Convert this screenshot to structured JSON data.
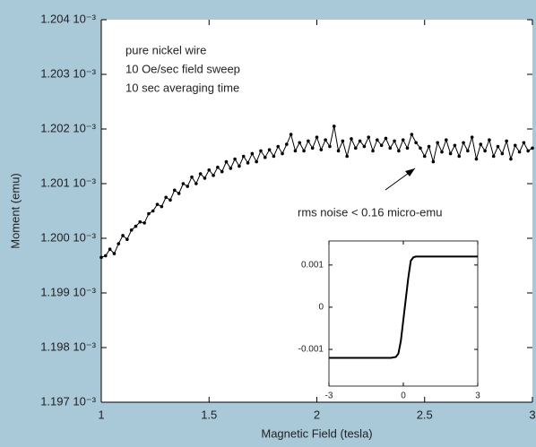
{
  "chart_data": [
    {
      "type": "line",
      "xlabel": "Magnetic Field (tesla)",
      "ylabel": "Moment (emu)",
      "annotations": [
        "pure nickel wire",
        "10 Oe/sec field sweep",
        "10 sec averaging time"
      ],
      "noise_note": "rms noise < 0.16 micro-emu",
      "highlight": {
        "xlim": [
          2.46,
          3.0
        ],
        "ylim": [
          0.0012011,
          0.00120195
        ],
        "color": "#1ba6de"
      },
      "color": "#000000",
      "xlim": [
        1,
        3
      ],
      "ylim": [
        0.001197,
        0.001204
      ],
      "xticks": [
        1,
        1.5,
        2,
        2.5,
        3
      ],
      "yticks": [
        {
          "value": 0.001197,
          "label": "1.197 10⁻³"
        },
        {
          "value": 0.001198,
          "label": "1.198 10⁻³"
        },
        {
          "value": 0.001199,
          "label": "1.199 10⁻³"
        },
        {
          "value": 0.0012,
          "label": "1.200 10⁻³"
        },
        {
          "value": 0.001201,
          "label": "1.201 10⁻³"
        },
        {
          "value": 0.001202,
          "label": "1.202 10⁻³"
        },
        {
          "value": 0.001203,
          "label": "1.203 10⁻³"
        },
        {
          "value": 0.001204,
          "label": "1.204 10⁻³"
        }
      ],
      "x": [
        1.0,
        1.02,
        1.04,
        1.06,
        1.08,
        1.1,
        1.12,
        1.14,
        1.16,
        1.18,
        1.2,
        1.22,
        1.24,
        1.26,
        1.28,
        1.3,
        1.32,
        1.34,
        1.36,
        1.38,
        1.4,
        1.42,
        1.44,
        1.46,
        1.48,
        1.5,
        1.52,
        1.54,
        1.56,
        1.58,
        1.6,
        1.62,
        1.64,
        1.66,
        1.68,
        1.7,
        1.72,
        1.74,
        1.76,
        1.78,
        1.8,
        1.82,
        1.84,
        1.86,
        1.88,
        1.9,
        1.92,
        1.94,
        1.96,
        1.98,
        2.0,
        2.02,
        2.04,
        2.06,
        2.08,
        2.1,
        2.12,
        2.14,
        2.16,
        2.18,
        2.2,
        2.22,
        2.24,
        2.26,
        2.28,
        2.3,
        2.32,
        2.34,
        2.36,
        2.38,
        2.4,
        2.42,
        2.44,
        2.46,
        2.48,
        2.5,
        2.52,
        2.54,
        2.56,
        2.58,
        2.6,
        2.62,
        2.64,
        2.66,
        2.68,
        2.7,
        2.72,
        2.74,
        2.76,
        2.78,
        2.8,
        2.82,
        2.84,
        2.86,
        2.88,
        2.9,
        2.92,
        2.94,
        2.96,
        2.98,
        3.0
      ],
      "values": [
        0.00119965,
        0.00119968,
        0.0011998,
        0.00119972,
        0.0011999,
        0.00120005,
        0.00119998,
        0.00120015,
        0.00120022,
        0.0012003,
        0.00120028,
        0.00120045,
        0.0012005,
        0.00120062,
        0.00120058,
        0.00120075,
        0.0012007,
        0.00120088,
        0.00120082,
        0.001201,
        0.00120095,
        0.00120112,
        0.001201,
        0.00120118,
        0.0012011,
        0.00120125,
        0.00120115,
        0.0012013,
        0.00120122,
        0.0012014,
        0.00120128,
        0.00120145,
        0.00120132,
        0.0012015,
        0.00120138,
        0.00120155,
        0.0012014,
        0.0012016,
        0.00120148,
        0.00120162,
        0.0012015,
        0.00120168,
        0.00120155,
        0.00120172,
        0.0012019,
        0.0012016,
        0.00120175,
        0.0012016,
        0.00120178,
        0.00120165,
        0.00120185,
        0.00120162,
        0.0012018,
        0.00120168,
        0.00120205,
        0.0012016,
        0.00120178,
        0.0012015,
        0.00120182,
        0.00120165,
        0.00120178,
        0.00120168,
        0.00120185,
        0.0012016,
        0.0012018,
        0.0012017,
        0.00120183,
        0.00120165,
        0.00120178,
        0.0012016,
        0.0012018,
        0.00120165,
        0.0012019,
        0.00120175,
        0.00120165,
        0.0012015,
        0.00120168,
        0.0012014,
        0.00120175,
        0.00120158,
        0.0012018,
        0.00120155,
        0.0012017,
        0.0012015,
        0.00120175,
        0.0012016,
        0.00120185,
        0.00120145,
        0.00120172,
        0.0012016,
        0.0012018,
        0.0012015,
        0.00120168,
        0.00120155,
        0.00120178,
        0.00120145,
        0.0012017,
        0.00120158,
        0.00120175,
        0.0012016,
        0.00120165
      ]
    },
    {
      "type": "line",
      "color": "#000000",
      "xlim": [
        -3,
        3
      ],
      "ylim": [
        -0.00187,
        0.00157
      ],
      "xticks": [
        -3,
        0,
        3
      ],
      "yticks": [
        -0.001,
        0,
        0.001
      ],
      "x": [
        -3,
        -1,
        -0.5,
        -0.3,
        -0.2,
        -0.1,
        0,
        0.1,
        0.2,
        0.3,
        0.4,
        0.5,
        1,
        3
      ],
      "values": [
        -0.0012,
        -0.0012,
        -0.0012,
        -0.00118,
        -0.0011,
        -0.0008,
        -0.0003,
        0.0002,
        0.0007,
        0.0011,
        0.00118,
        0.0012,
        0.0012,
        0.0012
      ]
    }
  ]
}
